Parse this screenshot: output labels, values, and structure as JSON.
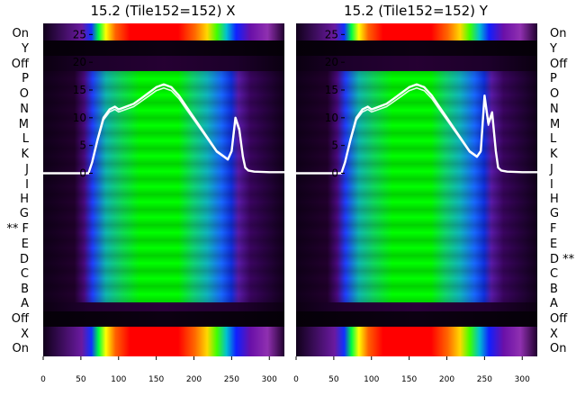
{
  "chart_data": [
    {
      "type": "heatmap",
      "title": "15.2 (Tile152=152) X",
      "x_ticks": [
        0,
        50,
        100,
        150,
        200,
        250,
        300
      ],
      "xlim": [
        0,
        320
      ],
      "y_ticks": [
        0,
        5,
        10,
        15,
        20,
        25
      ],
      "ylim": [
        -33,
        27
      ],
      "row_labels_bottom_to_top": [
        "On",
        "X",
        "Off",
        "A",
        "B",
        "C",
        "D",
        "E",
        "** F",
        "G",
        "H",
        "I",
        "J",
        "K",
        "L",
        "M",
        "N",
        "O",
        "P",
        "Off",
        "Y",
        "On"
      ],
      "highlight_row": "F",
      "bright_rows": [
        "On"
      ],
      "dark_rows": [
        "Off",
        "X",
        "Y"
      ],
      "overlay_curve": {
        "color": "#ffffff",
        "baseline": 0,
        "x": [
          0,
          60,
          65,
          72,
          80,
          88,
          95,
          100,
          110,
          120,
          130,
          140,
          150,
          160,
          170,
          180,
          190,
          200,
          210,
          220,
          230,
          240,
          245,
          250,
          255,
          260,
          265,
          268,
          272,
          280,
          300,
          320
        ],
        "y": [
          0,
          0,
          2,
          6,
          10,
          11.5,
          12,
          11.5,
          12,
          12.5,
          13.5,
          14.5,
          15.5,
          16,
          15.5,
          14,
          12,
          10,
          8,
          6,
          4,
          3,
          2.5,
          4,
          10,
          8,
          3,
          1,
          0.5,
          0.3,
          0.2,
          0.2
        ]
      }
    },
    {
      "type": "heatmap",
      "title": "15.2 (Tile152=152) Y",
      "x_ticks": [
        0,
        50,
        100,
        150,
        200,
        250,
        300
      ],
      "xlim": [
        0,
        320
      ],
      "y_ticks": [
        0,
        5,
        10,
        15,
        20,
        25
      ],
      "ylim": [
        -33,
        27
      ],
      "row_labels_bottom_to_top": [
        "On",
        "X",
        "Off",
        "A",
        "B",
        "C",
        "D **",
        "E",
        "F",
        "G",
        "H",
        "I",
        "J",
        "K",
        "L",
        "M",
        "N",
        "O",
        "P",
        "Off",
        "Y",
        "On"
      ],
      "highlight_row": "D",
      "bright_rows": [
        "On"
      ],
      "dark_rows": [
        "Off",
        "X",
        "Y"
      ],
      "overlay_curve": {
        "color": "#ffffff",
        "baseline": 0,
        "x": [
          0,
          60,
          65,
          72,
          80,
          88,
          95,
          100,
          110,
          120,
          130,
          140,
          150,
          160,
          170,
          180,
          190,
          200,
          210,
          220,
          230,
          240,
          245,
          250,
          255,
          260,
          265,
          268,
          272,
          280,
          300,
          320
        ],
        "y": [
          0,
          0,
          2,
          6,
          10,
          11.5,
          12,
          11.5,
          12,
          12.5,
          13.5,
          14.5,
          15.5,
          16,
          15.5,
          14,
          12,
          10,
          8,
          6,
          4,
          3,
          4,
          14,
          9,
          11,
          4,
          1,
          0.5,
          0.3,
          0.2,
          0.2
        ]
      }
    }
  ]
}
